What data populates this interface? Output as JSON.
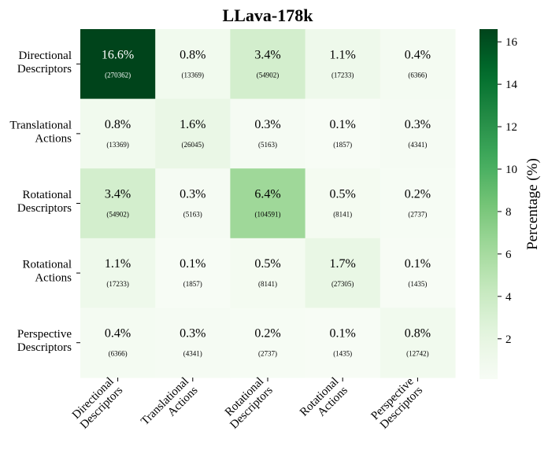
{
  "chart_data": {
    "type": "heatmap",
    "title": "LLava-178k",
    "row_labels": [
      [
        "Directional",
        "Descriptors"
      ],
      [
        "Translational",
        "Actions"
      ],
      [
        "Rotational",
        "Descriptors"
      ],
      [
        "Rotational",
        "Actions"
      ],
      [
        "Perspective",
        "Descriptors"
      ]
    ],
    "col_labels": [
      [
        "Directional",
        "Descriptors"
      ],
      [
        "Translational",
        "Actions"
      ],
      [
        "Rotational",
        "Descriptors"
      ],
      [
        "Rotational",
        "Actions"
      ],
      [
        "Perspective",
        "Descriptors"
      ]
    ],
    "percent_labels": [
      [
        "16.6%",
        "0.8%",
        "3.4%",
        "1.1%",
        "0.4%"
      ],
      [
        "0.8%",
        "1.6%",
        "0.3%",
        "0.1%",
        "0.3%"
      ],
      [
        "3.4%",
        "0.3%",
        "6.4%",
        "0.5%",
        "0.2%"
      ],
      [
        "1.1%",
        "0.1%",
        "0.5%",
        "1.7%",
        "0.1%"
      ],
      [
        "0.4%",
        "0.3%",
        "0.2%",
        "0.1%",
        "0.8%"
      ]
    ],
    "values": [
      [
        16.6,
        0.8,
        3.4,
        1.1,
        0.4
      ],
      [
        0.8,
        1.6,
        0.3,
        0.1,
        0.3
      ],
      [
        3.4,
        0.3,
        6.4,
        0.5,
        0.2
      ],
      [
        1.1,
        0.1,
        0.5,
        1.7,
        0.1
      ],
      [
        0.4,
        0.3,
        0.2,
        0.1,
        0.8
      ]
    ],
    "count_labels": [
      [
        "(270362)",
        "(13369)",
        "(54902)",
        "(17233)",
        "(6366)"
      ],
      [
        "(13369)",
        "(26045)",
        "(5163)",
        "(1857)",
        "(4341)"
      ],
      [
        "(54902)",
        "(5163)",
        "(104591)",
        "(8141)",
        "(2737)"
      ],
      [
        "(17233)",
        "(1857)",
        "(8141)",
        "(27305)",
        "(1435)"
      ],
      [
        "(6366)",
        "(4341)",
        "(2737)",
        "(1435)",
        "(12742)"
      ]
    ],
    "colorbar": {
      "label": "Percentage (%)",
      "range": [
        0.1,
        16.6
      ],
      "ticks": [
        2,
        4,
        6,
        8,
        10,
        12,
        14,
        16
      ],
      "colormap": "Greens"
    }
  }
}
